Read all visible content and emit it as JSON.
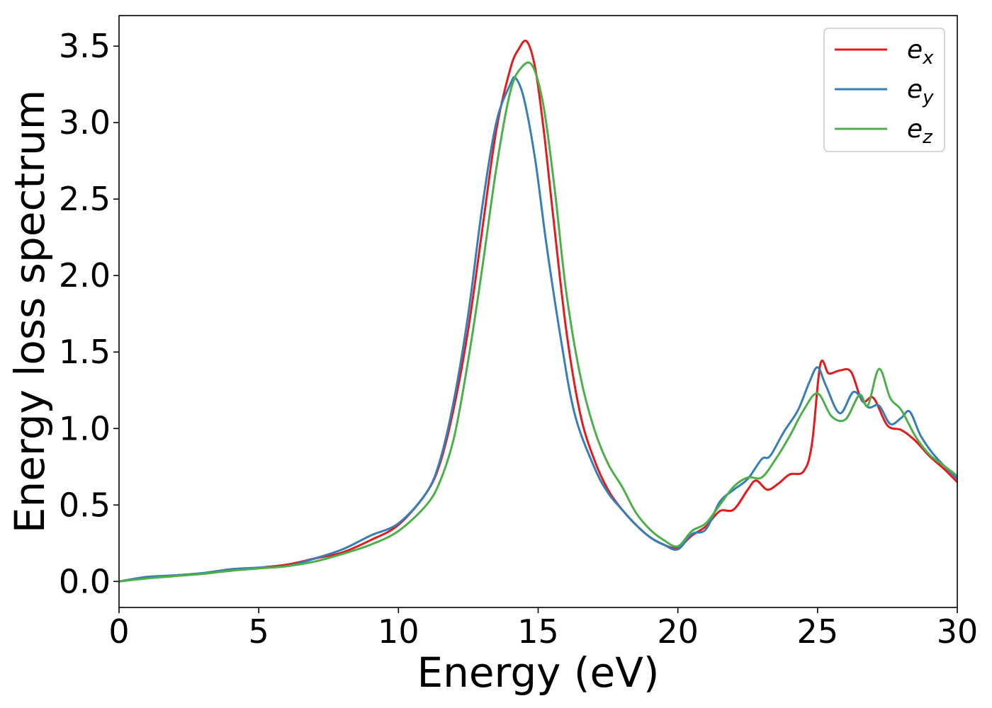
{
  "chart_data": {
    "type": "line",
    "title": "",
    "xlabel": "Energy (eV)",
    "ylabel": "Energy loss spectrum",
    "xlim": [
      0,
      30
    ],
    "ylim": [
      -0.17,
      3.7
    ],
    "xticks": [
      0,
      5,
      10,
      15,
      20,
      25,
      30
    ],
    "xtick_labels": [
      "0",
      "5",
      "10",
      "15",
      "20",
      "25",
      "30"
    ],
    "yticks": [
      0.0,
      0.5,
      1.0,
      1.5,
      2.0,
      2.5,
      3.0,
      3.5
    ],
    "ytick_labels": [
      "0.0",
      "0.5",
      "1.0",
      "1.5",
      "2.0",
      "2.5",
      "3.0",
      "3.5"
    ],
    "grid": false,
    "legend_position": "top-right",
    "series": [
      {
        "name": "e",
        "subscript": "x",
        "color": "#e41a1c",
        "points": [
          [
            0,
            0.0
          ],
          [
            1,
            0.025
          ],
          [
            2,
            0.04
          ],
          [
            3,
            0.05
          ],
          [
            4,
            0.075
          ],
          [
            5,
            0.09
          ],
          [
            6,
            0.11
          ],
          [
            7,
            0.15
          ],
          [
            8,
            0.19
          ],
          [
            9,
            0.27
          ],
          [
            10,
            0.37
          ],
          [
            11,
            0.58
          ],
          [
            11.5,
            0.78
          ],
          [
            12,
            1.15
          ],
          [
            12.5,
            1.65
          ],
          [
            13,
            2.3
          ],
          [
            13.5,
            2.95
          ],
          [
            14,
            3.35
          ],
          [
            14.3,
            3.48
          ],
          [
            14.6,
            3.53
          ],
          [
            14.9,
            3.35
          ],
          [
            15.2,
            2.95
          ],
          [
            15.5,
            2.45
          ],
          [
            16,
            1.65
          ],
          [
            16.5,
            1.1
          ],
          [
            17,
            0.8
          ],
          [
            17.5,
            0.6
          ],
          [
            18,
            0.47
          ],
          [
            18.5,
            0.37
          ],
          [
            19,
            0.29
          ],
          [
            19.5,
            0.24
          ],
          [
            20,
            0.22
          ],
          [
            20.5,
            0.3
          ],
          [
            21,
            0.36
          ],
          [
            21.5,
            0.46
          ],
          [
            22,
            0.47
          ],
          [
            22.5,
            0.6
          ],
          [
            22.8,
            0.66
          ],
          [
            23.2,
            0.6
          ],
          [
            23.6,
            0.64
          ],
          [
            24,
            0.7
          ],
          [
            24.5,
            0.72
          ],
          [
            24.8,
            0.9
          ],
          [
            25.1,
            1.42
          ],
          [
            25.4,
            1.36
          ],
          [
            25.8,
            1.38
          ],
          [
            26.2,
            1.37
          ],
          [
            26.6,
            1.18
          ],
          [
            27,
            1.2
          ],
          [
            27.5,
            1.02
          ],
          [
            28,
            0.99
          ],
          [
            28.5,
            0.92
          ],
          [
            29,
            0.82
          ],
          [
            29.5,
            0.74
          ],
          [
            30,
            0.65
          ]
        ]
      },
      {
        "name": "e",
        "subscript": "y",
        "color": "#377eb8",
        "points": [
          [
            0,
            0.0
          ],
          [
            1,
            0.03
          ],
          [
            2,
            0.04
          ],
          [
            3,
            0.055
          ],
          [
            4,
            0.08
          ],
          [
            5,
            0.09
          ],
          [
            6,
            0.1
          ],
          [
            7,
            0.15
          ],
          [
            8,
            0.21
          ],
          [
            9,
            0.3
          ],
          [
            10,
            0.38
          ],
          [
            11,
            0.58
          ],
          [
            11.5,
            0.8
          ],
          [
            12,
            1.2
          ],
          [
            12.5,
            1.75
          ],
          [
            13,
            2.45
          ],
          [
            13.5,
            3.0
          ],
          [
            14,
            3.25
          ],
          [
            14.2,
            3.29
          ],
          [
            14.5,
            3.15
          ],
          [
            14.9,
            2.75
          ],
          [
            15.3,
            2.2
          ],
          [
            15.8,
            1.6
          ],
          [
            16.3,
            1.1
          ],
          [
            17,
            0.75
          ],
          [
            17.5,
            0.58
          ],
          [
            18,
            0.47
          ],
          [
            18.5,
            0.37
          ],
          [
            19,
            0.29
          ],
          [
            19.5,
            0.24
          ],
          [
            20,
            0.21
          ],
          [
            20.5,
            0.31
          ],
          [
            21,
            0.34
          ],
          [
            21.5,
            0.52
          ],
          [
            22,
            0.6
          ],
          [
            22.5,
            0.67
          ],
          [
            23,
            0.8
          ],
          [
            23.3,
            0.82
          ],
          [
            23.8,
            0.98
          ],
          [
            24.3,
            1.12
          ],
          [
            24.7,
            1.3
          ],
          [
            25,
            1.4
          ],
          [
            25.3,
            1.28
          ],
          [
            25.8,
            1.1
          ],
          [
            26.3,
            1.24
          ],
          [
            26.8,
            1.14
          ],
          [
            27.2,
            1.15
          ],
          [
            27.6,
            1.03
          ],
          [
            28,
            1.07
          ],
          [
            28.3,
            1.11
          ],
          [
            28.7,
            0.95
          ],
          [
            29.2,
            0.82
          ],
          [
            30,
            0.67
          ]
        ]
      },
      {
        "name": "e",
        "subscript": "z",
        "color": "#4daf4a",
        "points": [
          [
            0,
            0.0
          ],
          [
            1,
            0.02
          ],
          [
            2,
            0.035
          ],
          [
            3,
            0.05
          ],
          [
            4,
            0.07
          ],
          [
            5,
            0.085
          ],
          [
            6,
            0.1
          ],
          [
            7,
            0.13
          ],
          [
            8,
            0.18
          ],
          [
            9,
            0.24
          ],
          [
            10,
            0.33
          ],
          [
            11,
            0.5
          ],
          [
            11.5,
            0.66
          ],
          [
            12,
            0.95
          ],
          [
            12.5,
            1.45
          ],
          [
            13,
            2.05
          ],
          [
            13.5,
            2.7
          ],
          [
            14,
            3.2
          ],
          [
            14.4,
            3.36
          ],
          [
            14.8,
            3.37
          ],
          [
            15.2,
            3.1
          ],
          [
            15.6,
            2.55
          ],
          [
            16,
            1.9
          ],
          [
            16.5,
            1.35
          ],
          [
            17,
            1.0
          ],
          [
            17.5,
            0.77
          ],
          [
            18,
            0.62
          ],
          [
            18.5,
            0.45
          ],
          [
            19,
            0.34
          ],
          [
            19.5,
            0.27
          ],
          [
            20,
            0.23
          ],
          [
            20.5,
            0.33
          ],
          [
            21,
            0.38
          ],
          [
            21.5,
            0.5
          ],
          [
            22,
            0.62
          ],
          [
            22.5,
            0.68
          ],
          [
            23,
            0.68
          ],
          [
            23.5,
            0.8
          ],
          [
            24,
            0.95
          ],
          [
            24.5,
            1.12
          ],
          [
            25,
            1.23
          ],
          [
            25.5,
            1.08
          ],
          [
            26,
            1.06
          ],
          [
            26.5,
            1.22
          ],
          [
            26.8,
            1.15
          ],
          [
            27.2,
            1.39
          ],
          [
            27.6,
            1.2
          ],
          [
            28,
            1.12
          ],
          [
            28.5,
            0.95
          ],
          [
            29,
            0.83
          ],
          [
            29.5,
            0.76
          ],
          [
            30,
            0.69
          ]
        ]
      }
    ]
  }
}
